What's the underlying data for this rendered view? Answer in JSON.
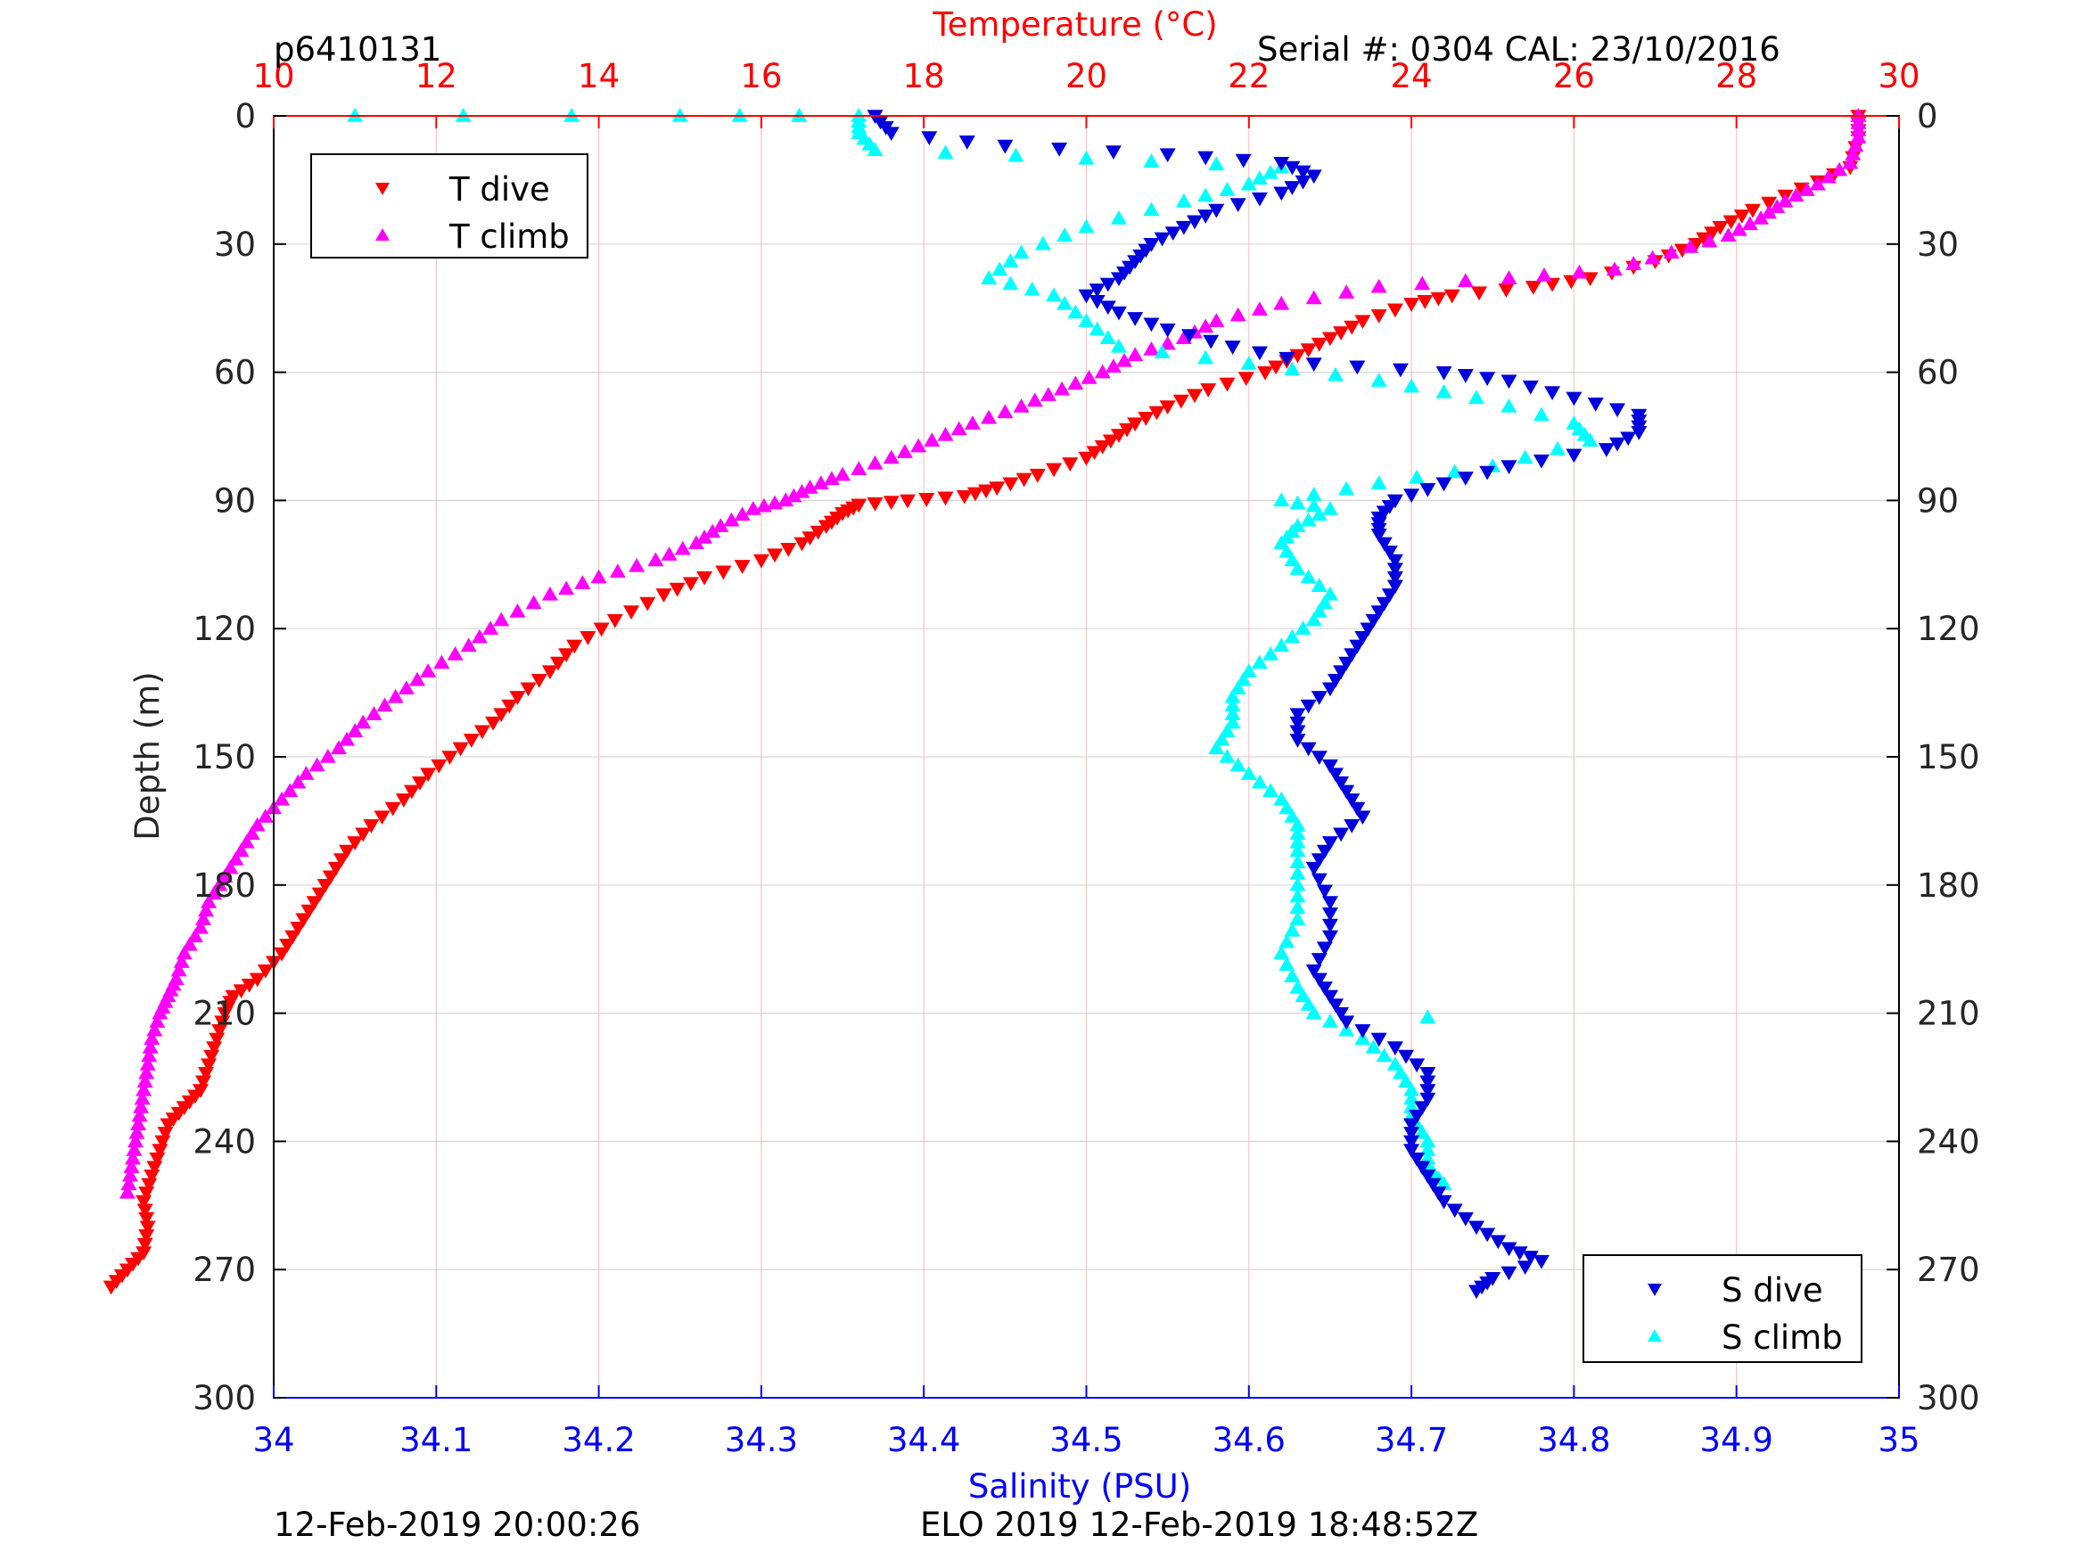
{
  "header": {
    "profile_id": "p6410131",
    "serial_info": "Serial #: 0304  CAL: 23/10/2016"
  },
  "footer": {
    "left_timestamp": "12-Feb-2019 20:00:26",
    "center_text": "ELO 2019 12-Feb-2019 18:48:52Z"
  },
  "colors": {
    "temperature_axis": "#ff0000",
    "salinity_axis": "#0000ff",
    "t_dive": "#ff0000",
    "t_climb": "#ff00ff",
    "s_dive": "#0000dd",
    "s_climb": "#00ffff"
  },
  "chart_data": {
    "type": "scatter",
    "ylabel": "Depth (m)",
    "top_xlabel": "Temperature (°C)",
    "bottom_xlabel": "Salinity (PSU)",
    "depth_range": [
      0,
      300
    ],
    "depth_reversed": true,
    "depth_ticks": [
      "0",
      "30",
      "60",
      "90",
      "120",
      "150",
      "180",
      "210",
      "240",
      "270",
      "300"
    ],
    "temperature_range": [
      10,
      30
    ],
    "temperature_ticks": [
      "10",
      "12",
      "14",
      "16",
      "18",
      "20",
      "22",
      "24",
      "26",
      "28",
      "30"
    ],
    "salinity_range": [
      34,
      35
    ],
    "salinity_ticks": [
      "34",
      "34.1",
      "34.2",
      "34.3",
      "34.4",
      "34.5",
      "34.6",
      "34.7",
      "34.8",
      "34.9",
      "35"
    ],
    "grid": true,
    "legends": [
      {
        "position": "top-left",
        "entries": [
          "T dive",
          "T climb"
        ]
      },
      {
        "position": "bottom-right",
        "entries": [
          "S dive",
          "S climb"
        ]
      }
    ],
    "series": [
      {
        "name": "T dive",
        "axis": "temperature",
        "marker": "down-triangle",
        "points": [
          [
            29.5,
            0
          ],
          [
            29.5,
            5
          ],
          [
            29.4,
            12
          ],
          [
            28.8,
            17
          ],
          [
            28.2,
            22
          ],
          [
            27.8,
            26
          ],
          [
            27.5,
            30
          ],
          [
            27.0,
            34
          ],
          [
            26.2,
            38
          ],
          [
            25.5,
            40
          ],
          [
            24.5,
            42
          ],
          [
            24.0,
            44
          ],
          [
            23.4,
            48
          ],
          [
            23.0,
            52
          ],
          [
            22.6,
            56
          ],
          [
            22.2,
            60
          ],
          [
            21.5,
            64
          ],
          [
            21.0,
            68
          ],
          [
            20.6,
            72
          ],
          [
            20.3,
            76
          ],
          [
            20.0,
            80
          ],
          [
            19.4,
            84
          ],
          [
            18.9,
            87
          ],
          [
            18.5,
            89
          ],
          [
            17.8,
            90
          ],
          [
            17.2,
            91
          ],
          [
            17.0,
            93
          ],
          [
            16.8,
            96
          ],
          [
            16.5,
            100
          ],
          [
            16.0,
            104
          ],
          [
            15.3,
            108
          ],
          [
            14.8,
            112
          ],
          [
            14.2,
            118
          ],
          [
            13.7,
            124
          ],
          [
            13.4,
            130
          ],
          [
            13.0,
            136
          ],
          [
            12.7,
            142
          ],
          [
            12.3,
            148
          ],
          [
            11.9,
            154
          ],
          [
            11.6,
            160
          ],
          [
            11.2,
            166
          ],
          [
            10.9,
            172
          ],
          [
            10.7,
            178
          ],
          [
            10.5,
            184
          ],
          [
            10.3,
            190
          ],
          [
            10.1,
            196
          ],
          [
            9.8,
            202
          ],
          [
            9.5,
            206
          ],
          [
            9.4,
            210
          ],
          [
            9.3,
            216
          ],
          [
            9.2,
            222
          ],
          [
            9.1,
            228
          ],
          [
            8.9,
            232
          ],
          [
            8.7,
            236
          ],
          [
            8.6,
            242
          ],
          [
            8.5,
            248
          ],
          [
            8.4,
            254
          ],
          [
            8.45,
            260
          ],
          [
            8.4,
            266
          ],
          [
            8.2,
            270
          ],
          [
            8.0,
            274
          ]
        ]
      },
      {
        "name": "T climb",
        "axis": "temperature",
        "marker": "up-triangle",
        "points": [
          [
            29.5,
            0
          ],
          [
            29.5,
            5
          ],
          [
            29.4,
            11
          ],
          [
            29.0,
            16
          ],
          [
            28.6,
            20
          ],
          [
            28.3,
            24
          ],
          [
            27.9,
            28
          ],
          [
            27.2,
            32
          ],
          [
            26.5,
            36
          ],
          [
            25.2,
            38
          ],
          [
            23.6,
            40
          ],
          [
            22.4,
            44
          ],
          [
            21.6,
            48
          ],
          [
            21.2,
            52
          ],
          [
            20.6,
            56
          ],
          [
            20.2,
            60
          ],
          [
            19.7,
            64
          ],
          [
            19.2,
            68
          ],
          [
            18.6,
            72
          ],
          [
            18.1,
            76
          ],
          [
            17.6,
            80
          ],
          [
            17.0,
            84
          ],
          [
            16.6,
            87
          ],
          [
            16.3,
            90
          ],
          [
            15.9,
            92
          ],
          [
            15.5,
            96
          ],
          [
            15.2,
            100
          ],
          [
            14.7,
            104
          ],
          [
            14.0,
            108
          ],
          [
            13.4,
            112
          ],
          [
            12.8,
            118
          ],
          [
            12.4,
            124
          ],
          [
            11.9,
            130
          ],
          [
            11.5,
            136
          ],
          [
            11.1,
            142
          ],
          [
            10.8,
            148
          ],
          [
            10.4,
            154
          ],
          [
            10.1,
            160
          ],
          [
            9.8,
            166
          ],
          [
            9.6,
            172
          ],
          [
            9.4,
            178
          ],
          [
            9.2,
            184
          ],
          [
            9.1,
            190
          ],
          [
            8.9,
            196
          ],
          [
            8.8,
            202
          ],
          [
            8.7,
            206
          ],
          [
            8.6,
            210
          ],
          [
            8.5,
            216
          ],
          [
            8.45,
            222
          ],
          [
            8.4,
            228
          ],
          [
            8.35,
            234
          ],
          [
            8.3,
            240
          ],
          [
            8.25,
            246
          ],
          [
            8.2,
            252
          ]
        ]
      },
      {
        "name": "S dive",
        "axis": "salinity",
        "marker": "down-triangle",
        "points": [
          [
            34.37,
            0
          ],
          [
            34.38,
            4
          ],
          [
            34.45,
            7
          ],
          [
            34.55,
            9
          ],
          [
            34.62,
            11
          ],
          [
            34.64,
            14
          ],
          [
            34.62,
            18
          ],
          [
            34.58,
            22
          ],
          [
            34.56,
            26
          ],
          [
            34.54,
            30
          ],
          [
            34.53,
            34
          ],
          [
            34.52,
            38
          ],
          [
            34.5,
            42
          ],
          [
            34.52,
            46
          ],
          [
            34.55,
            50
          ],
          [
            34.59,
            54
          ],
          [
            34.64,
            58
          ],
          [
            34.72,
            60
          ],
          [
            34.76,
            62
          ],
          [
            34.8,
            66
          ],
          [
            34.84,
            70
          ],
          [
            34.84,
            74
          ],
          [
            34.82,
            78
          ],
          [
            34.76,
            82
          ],
          [
            34.72,
            86
          ],
          [
            34.69,
            90
          ],
          [
            34.68,
            94
          ],
          [
            34.68,
            98
          ],
          [
            34.69,
            104
          ],
          [
            34.69,
            110
          ],
          [
            34.68,
            116
          ],
          [
            34.67,
            122
          ],
          [
            34.66,
            128
          ],
          [
            34.65,
            134
          ],
          [
            34.63,
            140
          ],
          [
            34.63,
            146
          ],
          [
            34.65,
            152
          ],
          [
            34.66,
            158
          ],
          [
            34.67,
            164
          ],
          [
            34.65,
            170
          ],
          [
            34.64,
            176
          ],
          [
            34.65,
            184
          ],
          [
            34.65,
            192
          ],
          [
            34.64,
            200
          ],
          [
            34.65,
            206
          ],
          [
            34.66,
            212
          ],
          [
            34.69,
            218
          ],
          [
            34.71,
            224
          ],
          [
            34.71,
            230
          ],
          [
            34.7,
            236
          ],
          [
            34.7,
            242
          ],
          [
            34.71,
            248
          ],
          [
            34.72,
            254
          ],
          [
            34.74,
            260
          ],
          [
            34.76,
            265
          ],
          [
            34.78,
            268
          ],
          [
            34.75,
            272
          ],
          [
            34.74,
            275
          ]
        ]
      },
      {
        "name": "S climb",
        "axis": "salinity",
        "marker": "up-triangle",
        "points": [
          [
            34.05,
            0
          ],
          [
            34.25,
            0
          ],
          [
            34.36,
            0
          ],
          [
            34.36,
            4
          ],
          [
            34.37,
            8
          ],
          [
            34.5,
            10
          ],
          [
            34.62,
            12
          ],
          [
            34.6,
            16
          ],
          [
            34.56,
            20
          ],
          [
            34.5,
            26
          ],
          [
            34.46,
            32
          ],
          [
            34.44,
            38
          ],
          [
            34.48,
            42
          ],
          [
            34.5,
            48
          ],
          [
            34.52,
            54
          ],
          [
            34.6,
            58
          ],
          [
            34.68,
            62
          ],
          [
            34.74,
            66
          ],
          [
            34.8,
            72
          ],
          [
            34.81,
            76
          ],
          [
            34.75,
            82
          ],
          [
            34.68,
            86
          ],
          [
            34.62,
            90
          ],
          [
            34.65,
            92
          ],
          [
            34.63,
            96
          ],
          [
            34.62,
            100
          ],
          [
            34.63,
            106
          ],
          [
            34.65,
            112
          ],
          [
            34.64,
            118
          ],
          [
            34.62,
            124
          ],
          [
            34.6,
            130
          ],
          [
            34.59,
            136
          ],
          [
            34.59,
            142
          ],
          [
            34.58,
            148
          ],
          [
            34.6,
            154
          ],
          [
            34.62,
            160
          ],
          [
            34.63,
            166
          ],
          [
            34.63,
            172
          ],
          [
            34.63,
            180
          ],
          [
            34.63,
            188
          ],
          [
            34.62,
            196
          ],
          [
            34.63,
            204
          ],
          [
            34.64,
            210
          ],
          [
            34.67,
            216
          ],
          [
            34.69,
            222
          ],
          [
            34.7,
            228
          ],
          [
            34.7,
            234
          ],
          [
            34.71,
            240
          ],
          [
            34.71,
            246
          ],
          [
            34.72,
            250
          ],
          [
            34.71,
            211
          ]
        ]
      }
    ]
  }
}
